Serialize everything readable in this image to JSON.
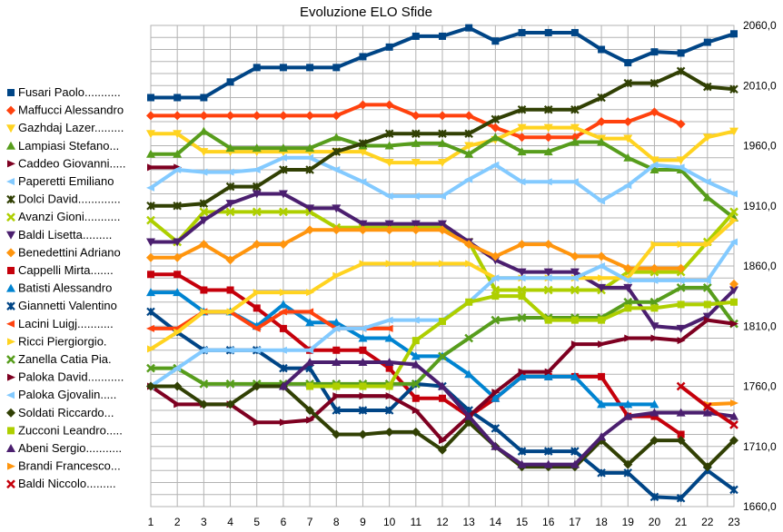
{
  "chart_data": {
    "type": "line",
    "title": "Evoluzione ELO Sfide",
    "xlabel": "",
    "ylabel": "",
    "x": [
      1,
      2,
      3,
      4,
      5,
      6,
      7,
      8,
      9,
      10,
      11,
      12,
      13,
      14,
      15,
      16,
      17,
      18,
      19,
      20,
      21,
      22,
      23
    ],
    "ylim": [
      1660,
      2060
    ],
    "yticks": [
      "2060,0",
      "2010,0",
      "1960,0",
      "1910,0",
      "1860,0",
      "1810,0",
      "1760,0",
      "1710,0",
      "1660,0"
    ],
    "ytick_values": [
      2060,
      2010,
      1960,
      1910,
      1860,
      1810,
      1760,
      1710,
      1660
    ],
    "legend_position": "left",
    "series": [
      {
        "name": "Fusari Paolo",
        "color": "#004586",
        "marker": "square",
        "values": [
          2000,
          2000,
          2000,
          2013,
          2025,
          2025,
          2025,
          2025,
          2034,
          2042,
          2051,
          2051,
          2058,
          2047,
          2054,
          2054,
          2054,
          2040,
          2029,
          2038,
          2037,
          2046,
          2053
        ]
      },
      {
        "name": "Maffucci Alessandro",
        "color": "#ff420e",
        "marker": "diamond",
        "values": [
          1985,
          1985,
          1985,
          1985,
          1985,
          1985,
          1985,
          1985,
          1994,
          1994,
          1985,
          1985,
          1985,
          1975,
          1967,
          1967,
          1967,
          1980,
          1980,
          1988,
          1978,
          null,
          null
        ]
      },
      {
        "name": "Gazhdaj Lazer",
        "color": "#ffd320",
        "marker": "triangle-down",
        "values": [
          1970,
          1970,
          1955,
          1955,
          1955,
          1955,
          1955,
          1955,
          1955,
          1946,
          1946,
          1946,
          1960,
          1965,
          1975,
          1975,
          1975,
          1966,
          1966,
          1948,
          1948,
          1967,
          1972
        ]
      },
      {
        "name": "Lampiasi Stefano",
        "color": "#579d1c",
        "marker": "triangle",
        "values": [
          1953,
          1953,
          1972,
          1958,
          1958,
          1958,
          1958,
          1967,
          1960,
          1960,
          1962,
          1962,
          1953,
          1967,
          1955,
          1955,
          1963,
          1963,
          1950,
          1940,
          1940,
          1917,
          1900
        ]
      },
      {
        "name": "Caddeo Giovanni",
        "color": "#7e0021",
        "marker": "arrow-right",
        "values": [
          1942,
          1942,
          null,
          null,
          null,
          null,
          null,
          null,
          null,
          null,
          null,
          null,
          null,
          null,
          null,
          null,
          null,
          null,
          null,
          null,
          null,
          null,
          null
        ]
      },
      {
        "name": "Paperetti Emiliano",
        "color": "#83caff",
        "marker": "arrow-left",
        "values": [
          1925,
          1940,
          1938,
          1938,
          1940,
          1950,
          1950,
          1940,
          1930,
          1918,
          1918,
          1918,
          1932,
          1944,
          1930,
          1930,
          1930,
          1914,
          1927,
          1944,
          1942,
          1930,
          1920
        ]
      },
      {
        "name": "Dolci David",
        "color": "#314004",
        "marker": "cross",
        "values": [
          1910,
          1910,
          1912,
          1926,
          1926,
          1940,
          1940,
          1955,
          1962,
          1970,
          1970,
          1970,
          1970,
          1982,
          1990,
          1990,
          1990,
          2000,
          2012,
          2012,
          2022,
          2009,
          2007
        ]
      },
      {
        "name": "Avanzi Gioni",
        "color": "#aecf00",
        "marker": "x",
        "values": [
          1898,
          1880,
          1905,
          1905,
          1905,
          1905,
          1905,
          1892,
          1892,
          1892,
          1892,
          1892,
          1880,
          1840,
          1840,
          1840,
          1840,
          1840,
          1855,
          1855,
          1855,
          1880,
          1905
        ]
      },
      {
        "name": "Baldi Lisetta",
        "color": "#4b1f6f",
        "marker": "triangle-down",
        "values": [
          1880,
          1880,
          1898,
          1912,
          1920,
          1920,
          1908,
          1908,
          1895,
          1895,
          1895,
          1895,
          1880,
          1865,
          1855,
          1855,
          1855,
          1842,
          1842,
          1810,
          1808,
          1818,
          1840
        ]
      },
      {
        "name": "Benedettini Adriano",
        "color": "#ff950e",
        "marker": "diamond",
        "values": [
          1867,
          1867,
          1878,
          1865,
          1878,
          1878,
          1890,
          1890,
          1890,
          1890,
          1890,
          1890,
          1878,
          1868,
          1878,
          1878,
          1868,
          1868,
          1858,
          1858,
          1858,
          null,
          1845
        ]
      },
      {
        "name": "Cappelli Mirta",
        "color": "#c5000b",
        "marker": "square",
        "values": [
          1853,
          1853,
          1840,
          1840,
          1825,
          1808,
          1790,
          1790,
          1790,
          1775,
          1750,
          1750,
          1735,
          1750,
          1768,
          1768,
          1768,
          1768,
          1735,
          1735,
          1720,
          null,
          null
        ]
      },
      {
        "name": "Batisti Alessandro",
        "color": "#0084d1",
        "marker": "triangle",
        "values": [
          1838,
          1838,
          1822,
          1822,
          1810,
          1828,
          1813,
          1813,
          1800,
          1800,
          1785,
          1785,
          1770,
          1750,
          1768,
          1768,
          1768,
          1745,
          1745,
          1745,
          null,
          null,
          null
        ]
      },
      {
        "name": "Giannetti Valentino",
        "color": "#004586",
        "marker": "cross",
        "values": [
          1822,
          1805,
          1790,
          1790,
          1790,
          1775,
          1775,
          1740,
          1740,
          1740,
          1762,
          1760,
          1740,
          1725,
          1706,
          1706,
          1706,
          1688,
          1688,
          1668,
          1667,
          1690,
          1674
        ]
      },
      {
        "name": "Lacini Luigj",
        "color": "#ff420e",
        "marker": "arrow-left",
        "values": [
          1808,
          1808,
          1822,
          1822,
          1808,
          1822,
          1822,
          1808,
          1808,
          1808,
          null,
          null,
          null,
          null,
          null,
          null,
          null,
          null,
          null,
          null,
          null,
          null,
          null
        ]
      },
      {
        "name": "Ricci Piergiorgio",
        "color": "#ffd320",
        "marker": "arrow-right",
        "values": [
          1791,
          1805,
          1822,
          1822,
          1838,
          1838,
          1838,
          1852,
          1862,
          1862,
          1862,
          1862,
          1862,
          1850,
          1850,
          1850,
          1850,
          1850,
          1850,
          1878,
          1878,
          1878,
          1898
        ]
      },
      {
        "name": "Zanella Catia Pia",
        "color": "#579d1c",
        "marker": "x",
        "values": [
          1775,
          1775,
          1762,
          1762,
          1762,
          1762,
          1762,
          1762,
          1762,
          1762,
          1762,
          1785,
          1800,
          1815,
          1817,
          1817,
          1817,
          1817,
          1830,
          1830,
          1842,
          1842,
          1812
        ]
      },
      {
        "name": "Paloka David",
        "color": "#7e0021",
        "marker": "arrow-right",
        "values": [
          1760,
          1745,
          1745,
          1745,
          1730,
          1730,
          1732,
          1752,
          1752,
          1752,
          1740,
          1715,
          1735,
          1755,
          1772,
          1772,
          1795,
          1795,
          1800,
          1800,
          1798,
          1815,
          1812
        ]
      },
      {
        "name": "Paloka Gjovalin",
        "color": "#83caff",
        "marker": "arrow-left",
        "values": [
          1760,
          1775,
          1790,
          1790,
          1790,
          1790,
          1790,
          1808,
          1808,
          1815,
          1815,
          1815,
          1830,
          1850,
          1850,
          1850,
          1850,
          1860,
          1848,
          1848,
          1848,
          1848,
          1880
        ]
      },
      {
        "name": "Soldati Riccardo",
        "color": "#314004",
        "marker": "diamond",
        "values": [
          1760,
          1760,
          1745,
          1745,
          1760,
          1760,
          1740,
          1720,
          1720,
          1722,
          1722,
          1707,
          1730,
          1710,
          1693,
          1693,
          1693,
          1715,
          1695,
          1715,
          1715,
          1693,
          1715
        ]
      },
      {
        "name": "Zucconi Leandro",
        "color": "#aecf00",
        "marker": "square",
        "values": [
          null,
          null,
          null,
          null,
          null,
          null,
          1760,
          1760,
          1760,
          1760,
          1798,
          1814,
          1830,
          1835,
          1835,
          1815,
          1815,
          1815,
          1825,
          1825,
          1828,
          1828,
          1830
        ]
      },
      {
        "name": "Abeni Sergio",
        "color": "#4b1f6f",
        "marker": "triangle",
        "values": [
          null,
          null,
          null,
          null,
          null,
          1760,
          1780,
          1780,
          1780,
          1780,
          1778,
          1760,
          1735,
          1710,
          1695,
          1695,
          1695,
          1718,
          1735,
          1738,
          1738,
          1738,
          1735
        ]
      },
      {
        "name": "Brandi Francesco",
        "color": "#ff950e",
        "marker": "arrow-right",
        "values": [
          null,
          null,
          null,
          null,
          null,
          null,
          null,
          null,
          null,
          null,
          null,
          null,
          null,
          null,
          null,
          null,
          null,
          null,
          null,
          null,
          null,
          1745,
          1746
        ]
      },
      {
        "name": "Baldi Niccolo",
        "color": "#c5000b",
        "marker": "x",
        "values": [
          null,
          null,
          null,
          null,
          null,
          null,
          null,
          null,
          null,
          null,
          null,
          null,
          null,
          null,
          null,
          null,
          null,
          null,
          null,
          null,
          1760,
          1743,
          1728
        ]
      }
    ]
  }
}
